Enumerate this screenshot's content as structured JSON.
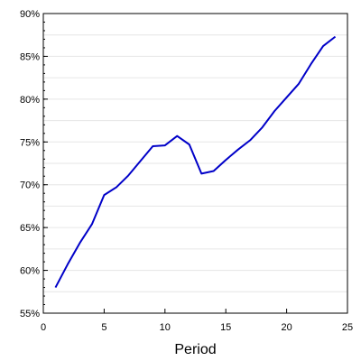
{
  "chart_data": {
    "type": "line",
    "title": "",
    "xlabel": "Period",
    "ylabel": "",
    "xlim": [
      0,
      25
    ],
    "ylim": [
      0.55,
      0.9
    ],
    "x_ticks": [
      0,
      5,
      10,
      15,
      20,
      25
    ],
    "y_ticks": [
      0.55,
      0.6,
      0.65,
      0.7,
      0.75,
      0.8,
      0.85,
      0.9
    ],
    "x_tick_labels": [
      "0",
      "5",
      "10",
      "15",
      "20",
      "25"
    ],
    "y_tick_labels": [
      "55%",
      "60%",
      "65%",
      "70%",
      "75%",
      "80%",
      "85%",
      "90%"
    ],
    "grid": "horizontal",
    "series": [
      {
        "color": "#0000c8",
        "x": [
          1,
          2,
          3,
          4,
          5,
          6,
          7,
          8,
          9,
          10,
          11,
          12,
          13,
          14,
          15,
          16,
          17,
          18,
          19,
          20,
          21,
          22,
          23,
          24
        ],
        "y": [
          0.58,
          0.607,
          0.632,
          0.654,
          0.688,
          0.697,
          0.711,
          0.728,
          0.745,
          0.746,
          0.757,
          0.747,
          0.713,
          0.716,
          0.729,
          0.741,
          0.752,
          0.767,
          0.786,
          0.802,
          0.818,
          0.841,
          0.862,
          0.873
        ]
      }
    ]
  }
}
